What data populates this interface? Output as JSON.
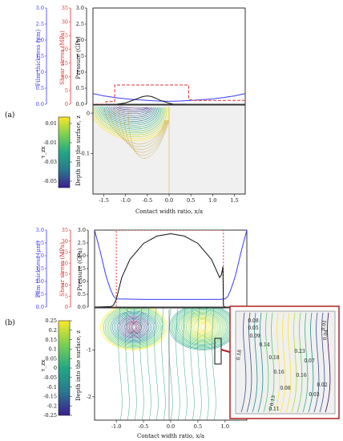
{
  "colors": {
    "film": "#3a3aff",
    "shear": "#e03030",
    "pressure": "#111111",
    "stress_bg": "#f0f0f0",
    "inset_frame": "#b02020"
  },
  "panels": [
    {
      "label": "(a)",
      "top_axes": {
        "film_thickness_label": "Film thickness (μm)",
        "shear_stress_label": "Shear stress (MPa)",
        "pressure_label": "Pressure (GPa)",
        "film_ticks": [
          "0.0",
          "0.5",
          "1.0",
          "1.5",
          "2.0",
          "2.5",
          "3.0"
        ],
        "shear_ticks": [
          "0",
          "5",
          "10",
          "15",
          "20",
          "25",
          "30",
          "35"
        ],
        "pressure_ticks": [
          "0.0",
          "0.5",
          "1.0",
          "1.5",
          "2.0",
          "2.5",
          "3.0"
        ]
      },
      "bottom_axes": {
        "ylabel": "Depth into the surface, z",
        "y_ticks": [
          "0",
          "-0.1"
        ],
        "colorbar_label": "τ_zx",
        "colorbar_ticks": [
          "0.01",
          "-0.01",
          "-0.03",
          "-0.05"
        ],
        "xlabel": "Contact width ratio, x/a",
        "x_ticks": [
          "-1.5",
          "-1.0",
          "-0.5",
          "0.0",
          "0.5",
          "1.0",
          "1.5"
        ]
      }
    },
    {
      "label": "(b)",
      "top_axes": {
        "film_thickness_label": "Film thickness (μm)",
        "shear_stress_label": "Shear stress (MPa)",
        "pressure_label": "Pressure (GPa)",
        "film_ticks": [
          "0.0",
          "0.5",
          "1.0",
          "1.5",
          "2.0",
          "2.5",
          "3.0"
        ],
        "shear_ticks": [
          "0",
          "5",
          "10",
          "15",
          "20",
          "25",
          "30",
          "35"
        ],
        "pressure_ticks": [
          "0.0",
          "0.5",
          "1.0",
          "1.5",
          "2.0",
          "2.5",
          "3.0"
        ]
      },
      "bottom_axes": {
        "ylabel": "Depth into the surface, z",
        "y_ticks": [
          "-1",
          "-2"
        ],
        "colorbar_label": "τ_zx",
        "colorbar_ticks": [
          "0.25",
          "0.2",
          "0.15",
          "0.1",
          "0.05",
          "0",
          "-0.05",
          "-0.1",
          "-0.15",
          "-0.2",
          "-0.25"
        ],
        "xlabel": "Contact width ratio, x/a",
        "x_ticks": [
          "-1.0",
          "-0.5",
          "0.0",
          "0.5",
          "1.0"
        ]
      },
      "inset_labels": [
        "0.08",
        "0.05",
        "0.09",
        "0.14",
        "0.18",
        "0.23",
        "0.16",
        "0.16",
        "0.18",
        "0.08",
        "0.03",
        "0.02",
        "0.13",
        "0.11",
        "0.01",
        "0.04",
        "0.07"
      ]
    }
  ],
  "chart_data": [
    {
      "type": "line",
      "panel": "(a)",
      "xlabel": "Contact width ratio, x/a",
      "xlim": [
        -1.75,
        1.75
      ],
      "series": [
        {
          "name": "Film thickness (μm)",
          "axis": "left",
          "ylim": [
            0,
            3.0
          ],
          "x": [
            -1.75,
            -1.5,
            -1.25,
            -1.0,
            -0.75,
            -0.5,
            -0.25,
            0.0,
            0.25,
            0.5,
            0.75,
            1.0,
            1.25,
            1.5,
            1.75
          ],
          "y": [
            0.33,
            0.26,
            0.21,
            0.17,
            0.14,
            0.12,
            0.1,
            0.09,
            0.1,
            0.12,
            0.14,
            0.17,
            0.21,
            0.26,
            0.33
          ]
        },
        {
          "name": "Shear stress (MPa)",
          "axis": "left2",
          "ylim": [
            0,
            35
          ],
          "style": "dashed",
          "x": [
            -1.75,
            -1.45,
            -1.45,
            -1.25,
            -1.25,
            0.45,
            0.45,
            0.55,
            1.75
          ],
          "y": [
            0.0,
            0.0,
            1.0,
            1.0,
            7.0,
            7.0,
            1.8,
            1.4,
            1.4
          ]
        },
        {
          "name": "Pressure (GPa)",
          "axis": "right",
          "ylim": [
            0,
            3.0
          ],
          "x": [
            -1.2,
            -1.0,
            -0.8,
            -0.6,
            -0.5,
            -0.4,
            -0.2,
            0.0,
            0.1,
            0.2,
            0.4
          ],
          "y": [
            0.0,
            0.04,
            0.14,
            0.24,
            0.26,
            0.24,
            0.12,
            0.03,
            0.0,
            0.0,
            0.0
          ]
        }
      ]
    },
    {
      "type": "line",
      "panel": "(b)",
      "xlabel": "Contact width ratio, x/a",
      "xlim": [
        -1.4,
        1.4
      ],
      "series": [
        {
          "name": "Film thickness (μm)",
          "axis": "left",
          "ylim": [
            0,
            3.0
          ],
          "x": [
            -1.4,
            -1.3,
            -1.2,
            -1.15,
            -1.1,
            -1.05,
            -1.0,
            -0.5,
            0.0,
            0.5,
            0.9,
            1.0,
            1.05,
            1.1,
            1.15,
            1.2,
            1.3,
            1.4
          ],
          "y": [
            3.0,
            2.2,
            1.3,
            0.95,
            0.65,
            0.42,
            0.32,
            0.3,
            0.3,
            0.3,
            0.3,
            0.32,
            0.42,
            0.65,
            0.95,
            1.3,
            2.2,
            3.0
          ]
        },
        {
          "name": "Shear stress (MPa)",
          "axis": "left2",
          "ylim": [
            0,
            35
          ],
          "style": "dotted",
          "x": [
            -1.4,
            -1.0,
            -1.0,
            0.97,
            0.97,
            1.4
          ],
          "y": [
            0.0,
            0.0,
            35.0,
            35.0,
            0.0,
            0.0
          ]
        },
        {
          "name": "Pressure (GPa)",
          "axis": "right",
          "ylim": [
            0,
            3.0
          ],
          "x": [
            -1.4,
            -1.1,
            -1.05,
            -1.0,
            -0.9,
            -0.75,
            -0.5,
            -0.25,
            0.0,
            0.25,
            0.5,
            0.75,
            0.9,
            0.93,
            0.95,
            0.96,
            0.97,
            1.0,
            1.4
          ],
          "y": [
            0.0,
            0.02,
            0.08,
            0.3,
            1.15,
            1.86,
            2.48,
            2.77,
            2.86,
            2.77,
            2.48,
            1.86,
            1.15,
            1.25,
            1.45,
            1.58,
            0.05,
            0.0,
            0.0
          ]
        }
      ]
    }
  ]
}
